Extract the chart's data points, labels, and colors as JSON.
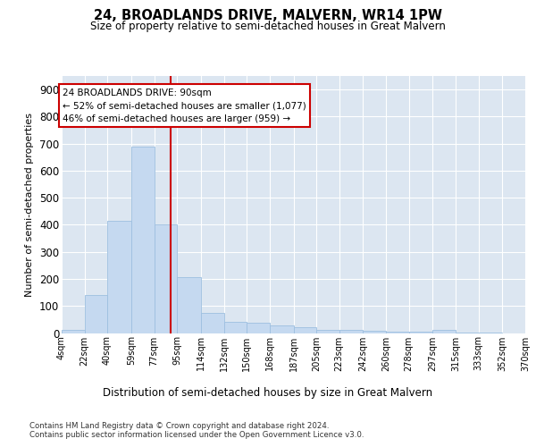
{
  "title": "24, BROADLANDS DRIVE, MALVERN, WR14 1PW",
  "subtitle": "Size of property relative to semi-detached houses in Great Malvern",
  "xlabel": "Distribution of semi-detached houses by size in Great Malvern",
  "ylabel": "Number of semi-detached properties",
  "bar_color": "#c5d9f0",
  "bar_edge_color": "#9dbfe0",
  "background_color": "#dce6f1",
  "grid_color": "#ffffff",
  "property_size": 90,
  "property_line_color": "#cc0000",
  "annotation_line1": "24 BROADLANDS DRIVE: 90sqm",
  "annotation_line2": "← 52% of semi-detached houses are smaller (1,077)",
  "annotation_line3": "46% of semi-detached houses are larger (959) →",
  "bin_edges": [
    4,
    22,
    40,
    59,
    77,
    95,
    114,
    132,
    150,
    168,
    187,
    205,
    223,
    242,
    260,
    278,
    297,
    315,
    333,
    352,
    370
  ],
  "bin_labels": [
    "4sqm",
    "22sqm",
    "40sqm",
    "59sqm",
    "77sqm",
    "95sqm",
    "114sqm",
    "132sqm",
    "150sqm",
    "168sqm",
    "187sqm",
    "205sqm",
    "223sqm",
    "242sqm",
    "260sqm",
    "278sqm",
    "297sqm",
    "315sqm",
    "333sqm",
    "352sqm",
    "370sqm"
  ],
  "heights": [
    10,
    140,
    415,
    690,
    400,
    207,
    75,
    42,
    38,
    27,
    21,
    11,
    10,
    8,
    5,
    5,
    10,
    3,
    3,
    0
  ],
  "ylim": [
    0,
    950
  ],
  "yticks": [
    0,
    100,
    200,
    300,
    400,
    500,
    600,
    700,
    800,
    900
  ],
  "footer1": "Contains HM Land Registry data © Crown copyright and database right 2024.",
  "footer2": "Contains public sector information licensed under the Open Government Licence v3.0."
}
